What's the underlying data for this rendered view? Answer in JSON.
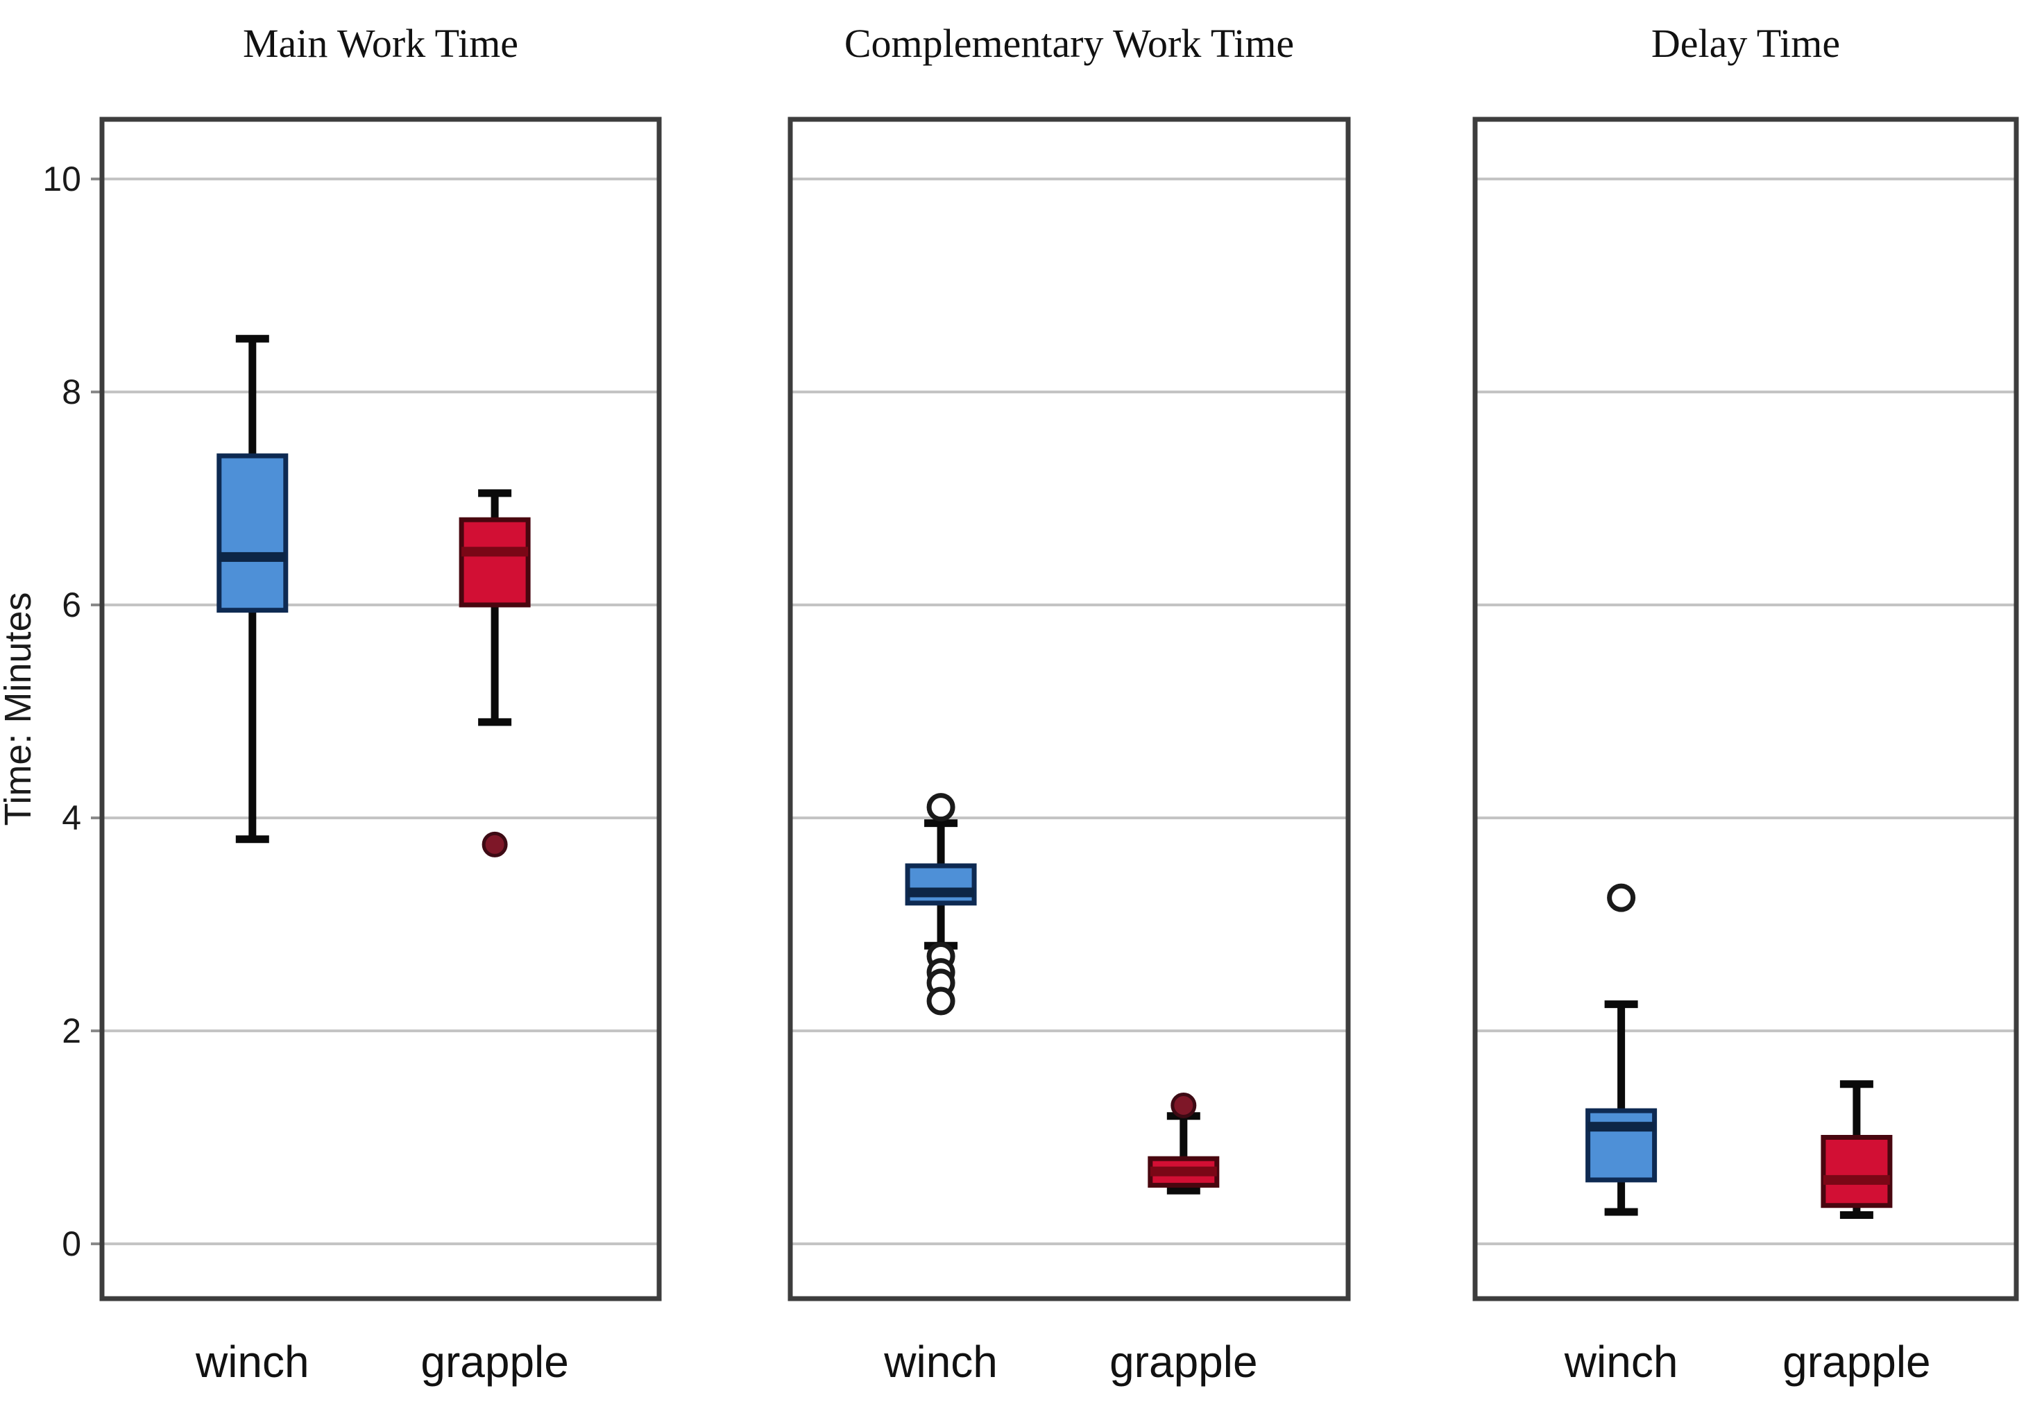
{
  "page": {
    "background": "#ffffff"
  },
  "axis": {
    "title": "Time: Minutes",
    "ticks": [
      0,
      2,
      4,
      6,
      8,
      10
    ]
  },
  "categories": [
    "winch",
    "grapple"
  ],
  "colors": {
    "blue_fill": "#4E90D7",
    "blue_edge": "#0E2A52",
    "blue_median": "#0D2646",
    "red_fill": "#D20F34",
    "red_edge": "#49060F",
    "red_median": "#7A0716",
    "whisker": "#0a0a0a",
    "gridline": "#c4c4c4",
    "panel_border": "#3d3d3d",
    "open_outlier_ring": "#1a1a1a",
    "open_outlier_fill": "#ffffff",
    "filled_outlier": "#7E1728",
    "filled_outlier_edge": "#3d0a14",
    "text": "#1a1a1a"
  },
  "chart_data": [
    {
      "type": "boxplot",
      "title": "Main Work Time",
      "ylabel": "Time: Minutes",
      "ylim": [
        -0.5,
        10.55
      ],
      "yticks": [
        0,
        2,
        4,
        6,
        8,
        10
      ],
      "grid": true,
      "categories": [
        "winch",
        "grapple"
      ],
      "series": [
        {
          "name": "winch",
          "color_key": "blue",
          "whisker_low": 3.8,
          "q1": 5.95,
          "median": 6.45,
          "q3": 7.4,
          "whisker_high": 8.5,
          "outliers_open": [],
          "outliers_filled": []
        },
        {
          "name": "grapple",
          "color_key": "red",
          "whisker_low": 4.9,
          "q1": 6.0,
          "median": 6.5,
          "q3": 6.8,
          "whisker_high": 7.05,
          "outliers_open": [],
          "outliers_filled": [
            3.75
          ]
        }
      ]
    },
    {
      "type": "boxplot",
      "title": "Complementary Work Time",
      "ylabel": "Time: Minutes",
      "ylim": [
        -0.5,
        10.55
      ],
      "yticks": [
        0,
        2,
        4,
        6,
        8,
        10
      ],
      "grid": true,
      "categories": [
        "winch",
        "grapple"
      ],
      "series": [
        {
          "name": "winch",
          "color_key": "blue",
          "whisker_low": 2.8,
          "q1": 3.2,
          "median": 3.3,
          "q3": 3.55,
          "whisker_high": 3.95,
          "outliers_open": [
            4.1,
            2.7,
            2.55,
            2.45,
            2.28
          ],
          "outliers_filled": []
        },
        {
          "name": "grapple",
          "color_key": "red",
          "whisker_low": 0.5,
          "q1": 0.55,
          "median": 0.68,
          "q3": 0.8,
          "whisker_high": 1.2,
          "outliers_open": [],
          "outliers_filled": [
            1.3
          ]
        }
      ]
    },
    {
      "type": "boxplot",
      "title": "Delay Time",
      "ylabel": "Time: Minutes",
      "ylim": [
        -0.5,
        10.55
      ],
      "yticks": [
        0,
        2,
        4,
        6,
        8,
        10
      ],
      "grid": true,
      "categories": [
        "winch",
        "grapple"
      ],
      "series": [
        {
          "name": "winch",
          "color_key": "blue",
          "whisker_low": 0.3,
          "q1": 0.6,
          "median": 1.1,
          "q3": 1.25,
          "whisker_high": 2.25,
          "outliers_open": [
            3.25
          ],
          "outliers_filled": []
        },
        {
          "name": "grapple",
          "color_key": "red",
          "whisker_low": 0.27,
          "q1": 0.36,
          "median": 0.6,
          "q3": 1.0,
          "whisker_high": 1.5,
          "outliers_open": [],
          "outliers_filled": []
        }
      ]
    }
  ]
}
